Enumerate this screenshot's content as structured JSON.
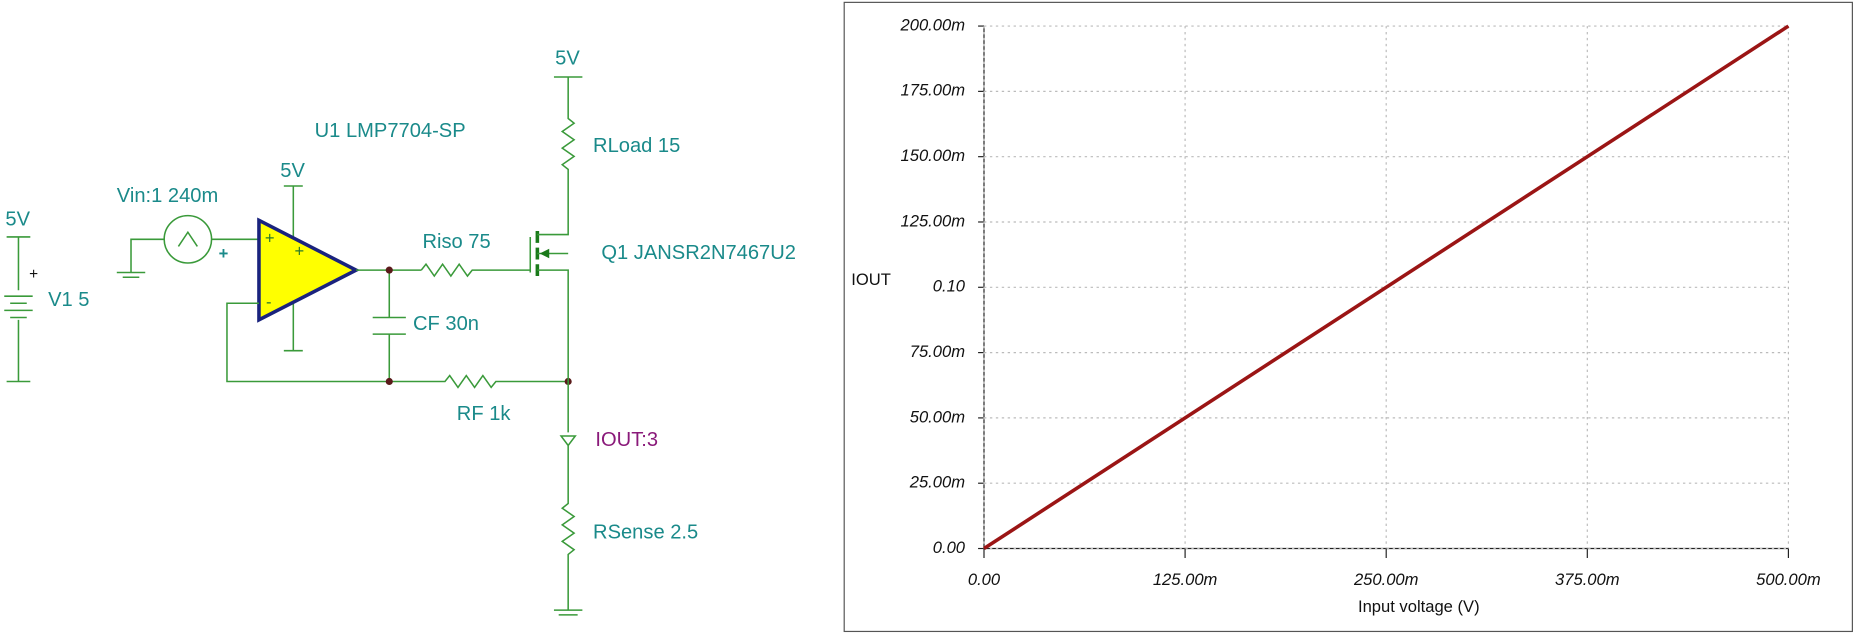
{
  "schematic": {
    "labels": [
      "5V",
      "+",
      "V1 5",
      "Vin:1 240m",
      "+",
      "U1 LMP7704-SP",
      "5V",
      "+",
      "+",
      "-",
      "Riso 75",
      "CF 30n",
      "RF 1k",
      "5V",
      "RLoad 15",
      "Q1 JANSR2N7467U2",
      "IOUT:3",
      "RSense 2.5"
    ]
  },
  "chart_data": {
    "type": "line",
    "y_label": "IOUT",
    "x_label": "Input voltage (V)",
    "x": [
      0,
      0.5
    ],
    "values": [
      0,
      0.2
    ],
    "color": "#9b1515",
    "xlim": [
      0,
      0.5
    ],
    "ylim": [
      0,
      0.2
    ],
    "xticks": [
      {
        "value": 0,
        "label": "0.00"
      },
      {
        "value": 0.125,
        "label": "125.00m"
      },
      {
        "value": 0.25,
        "label": "250.00m"
      },
      {
        "value": 0.375,
        "label": "375.00m"
      },
      {
        "value": 0.5,
        "label": "500.00m"
      }
    ],
    "yticks": [
      {
        "value": 0,
        "label": "0.00"
      },
      {
        "value": 0.025,
        "label": "25.00m"
      },
      {
        "value": 0.05,
        "label": "50.00m"
      },
      {
        "value": 0.075,
        "label": "75.00m"
      },
      {
        "value": 0.1,
        "label": "0.10"
      },
      {
        "value": 0.125,
        "label": "125.00m"
      },
      {
        "value": 0.15,
        "label": "150.00m"
      },
      {
        "value": 0.175,
        "label": "175.00m"
      },
      {
        "value": 0.2,
        "label": "200.00m"
      }
    ],
    "grid": true
  }
}
